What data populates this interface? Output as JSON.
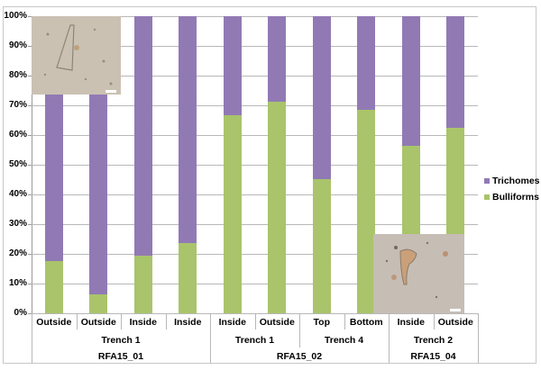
{
  "chart_data": {
    "type": "bar",
    "stacked": true,
    "normalized_percent": true,
    "title": "",
    "xlabel": "",
    "ylabel": "",
    "ylim": [
      0,
      100
    ],
    "yticks": [
      "0%",
      "10%",
      "20%",
      "30%",
      "40%",
      "50%",
      "60%",
      "70%",
      "80%",
      "90%",
      "100%"
    ],
    "grid": true,
    "legend_position": "right",
    "categories": [
      "Outside",
      "Outside",
      "Inside",
      "Inside",
      "Inside",
      "Outside",
      "Top",
      "Bottom",
      "Inside",
      "Outside"
    ],
    "category_groups": [
      {
        "label": "Trench 1",
        "span": 4
      },
      {
        "label": "Trench 1",
        "span": 2
      },
      {
        "label": "Trench 4",
        "span": 2
      },
      {
        "label": "Trench 2",
        "span": 2
      }
    ],
    "top_groups": [
      {
        "label": "RFA15_01",
        "span": 4
      },
      {
        "label": "RFA15_02",
        "span": 4
      },
      {
        "label": "RFA15_04",
        "span": 2
      }
    ],
    "series": [
      {
        "name": "Bulliforms",
        "color": "#a9c46b",
        "values": [
          17.6,
          6.4,
          19.4,
          23.6,
          66.7,
          71.2,
          45.2,
          68.5,
          56.4,
          62.4
        ]
      },
      {
        "name": "Trichomes",
        "color": "#917ab4",
        "values": [
          82.4,
          93.6,
          80.6,
          76.4,
          33.3,
          28.8,
          54.8,
          31.5,
          43.6,
          37.6
        ]
      }
    ],
    "annotations": [
      "Inset micrograph of trichome phytolith (top-left)",
      "Inset micrograph of bulliform phytolith (bottom-right)"
    ]
  },
  "legend": {
    "items": [
      {
        "label": "Trichomes",
        "color": "#917ab4"
      },
      {
        "label": "Bulliforms",
        "color": "#a9c46b"
      }
    ]
  }
}
